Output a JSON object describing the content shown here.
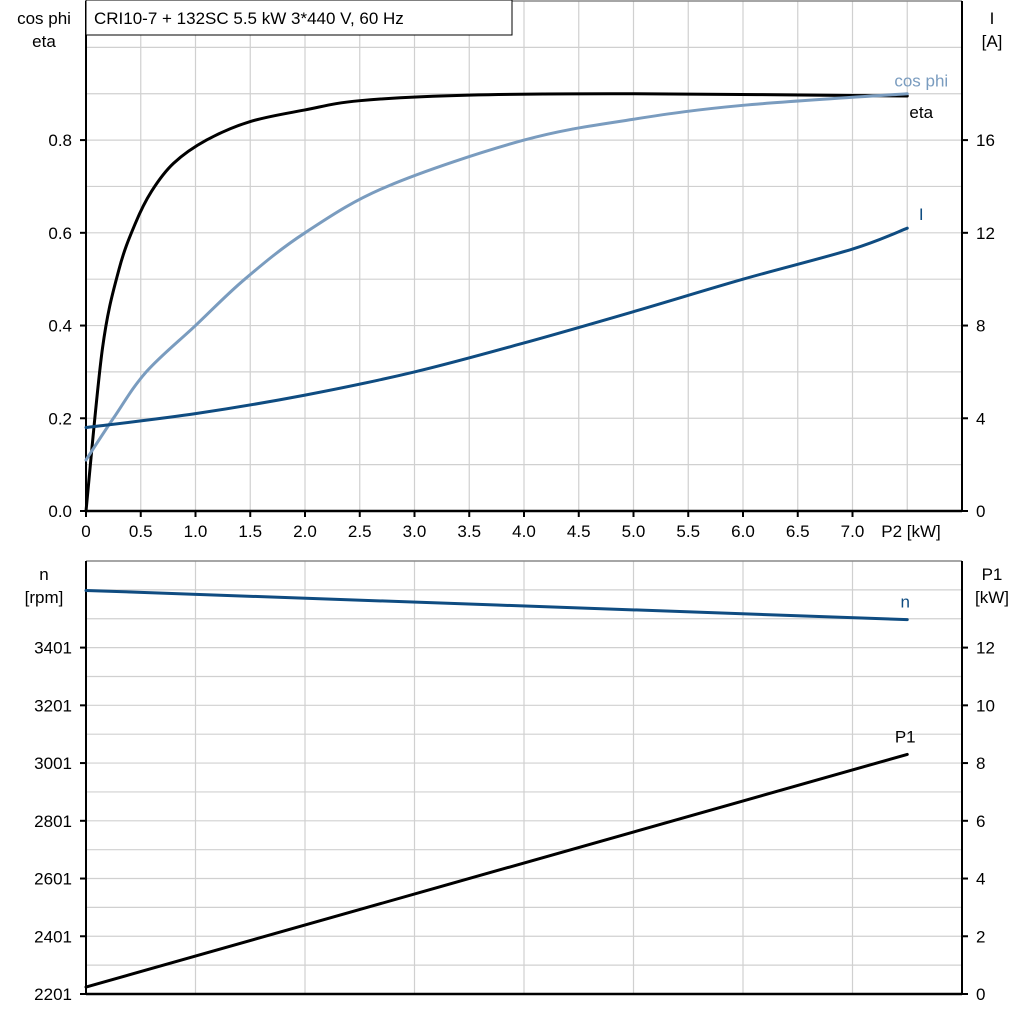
{
  "title": "CRI10-7 + 132SC   5.5 kW   3*440 V, 60 Hz",
  "chart_data": [
    {
      "type": "line",
      "xlabel": "P2 [kW]",
      "xlim": [
        0,
        8
      ],
      "x_ticks": [
        "0",
        "0.5",
        "1.0",
        "1.5",
        "2.0",
        "2.5",
        "3.0",
        "3.5",
        "4.0",
        "4.5",
        "5.0",
        "5.5",
        "6.0",
        "6.5",
        "7.0"
      ],
      "ylabel_left": [
        "cos phi",
        "eta"
      ],
      "ylim_left": [
        0,
        1.1
      ],
      "y_ticks_left": [
        "0.0",
        "0.2",
        "0.4",
        "0.6",
        "0.8"
      ],
      "ylabel_right": [
        "I",
        "[A]"
      ],
      "ylim_right": [
        0,
        22
      ],
      "y_ticks_right": [
        "0",
        "4",
        "8",
        "12",
        "16"
      ],
      "grid": true,
      "series": [
        {
          "name": "eta",
          "axis": "left",
          "color": "#000000",
          "x": [
            0,
            0.15,
            0.3,
            0.45,
            0.6,
            0.8,
            1.1,
            1.5,
            2.0,
            2.5,
            3.5,
            5.0,
            7.5
          ],
          "y": [
            0,
            0.35,
            0.52,
            0.62,
            0.69,
            0.75,
            0.8,
            0.84,
            0.865,
            0.885,
            0.897,
            0.9,
            0.895
          ]
        },
        {
          "name": "cos phi",
          "axis": "left",
          "color": "#7a9cbf",
          "x": [
            0,
            0.25,
            0.55,
            1.0,
            1.45,
            2.0,
            2.75,
            4.0,
            5.0,
            6.0,
            7.5
          ],
          "y": [
            0.11,
            0.2,
            0.3,
            0.4,
            0.5,
            0.6,
            0.7,
            0.8,
            0.845,
            0.875,
            0.9
          ]
        },
        {
          "name": "I",
          "axis": "right",
          "color": "#0f4c81",
          "x": [
            0,
            1,
            2,
            3,
            4,
            5,
            6,
            7,
            7.5
          ],
          "y": [
            3.6,
            4.2,
            5.0,
            6.0,
            7.25,
            8.6,
            10.0,
            11.3,
            12.2
          ]
        }
      ]
    },
    {
      "type": "line",
      "xlim": [
        0,
        8
      ],
      "ylabel_left": [
        "n",
        "[rpm]"
      ],
      "ylim_left": [
        2201,
        3701
      ],
      "y_ticks_left": [
        "2201",
        "2401",
        "2601",
        "2801",
        "3001",
        "3201",
        "3401"
      ],
      "ylabel_right": [
        "P1",
        "[kW]"
      ],
      "ylim_right": [
        0,
        15
      ],
      "y_ticks_right": [
        "0",
        "2",
        "4",
        "6",
        "8",
        "10",
        "12"
      ],
      "grid": true,
      "series": [
        {
          "name": "n",
          "axis": "left",
          "color": "#0f4c81",
          "x": [
            0,
            7.5
          ],
          "y": [
            3599,
            3498
          ]
        },
        {
          "name": "P1",
          "axis": "right",
          "color": "#000000",
          "x": [
            0,
            7.5
          ],
          "y": [
            0.24,
            8.3
          ]
        }
      ]
    }
  ]
}
